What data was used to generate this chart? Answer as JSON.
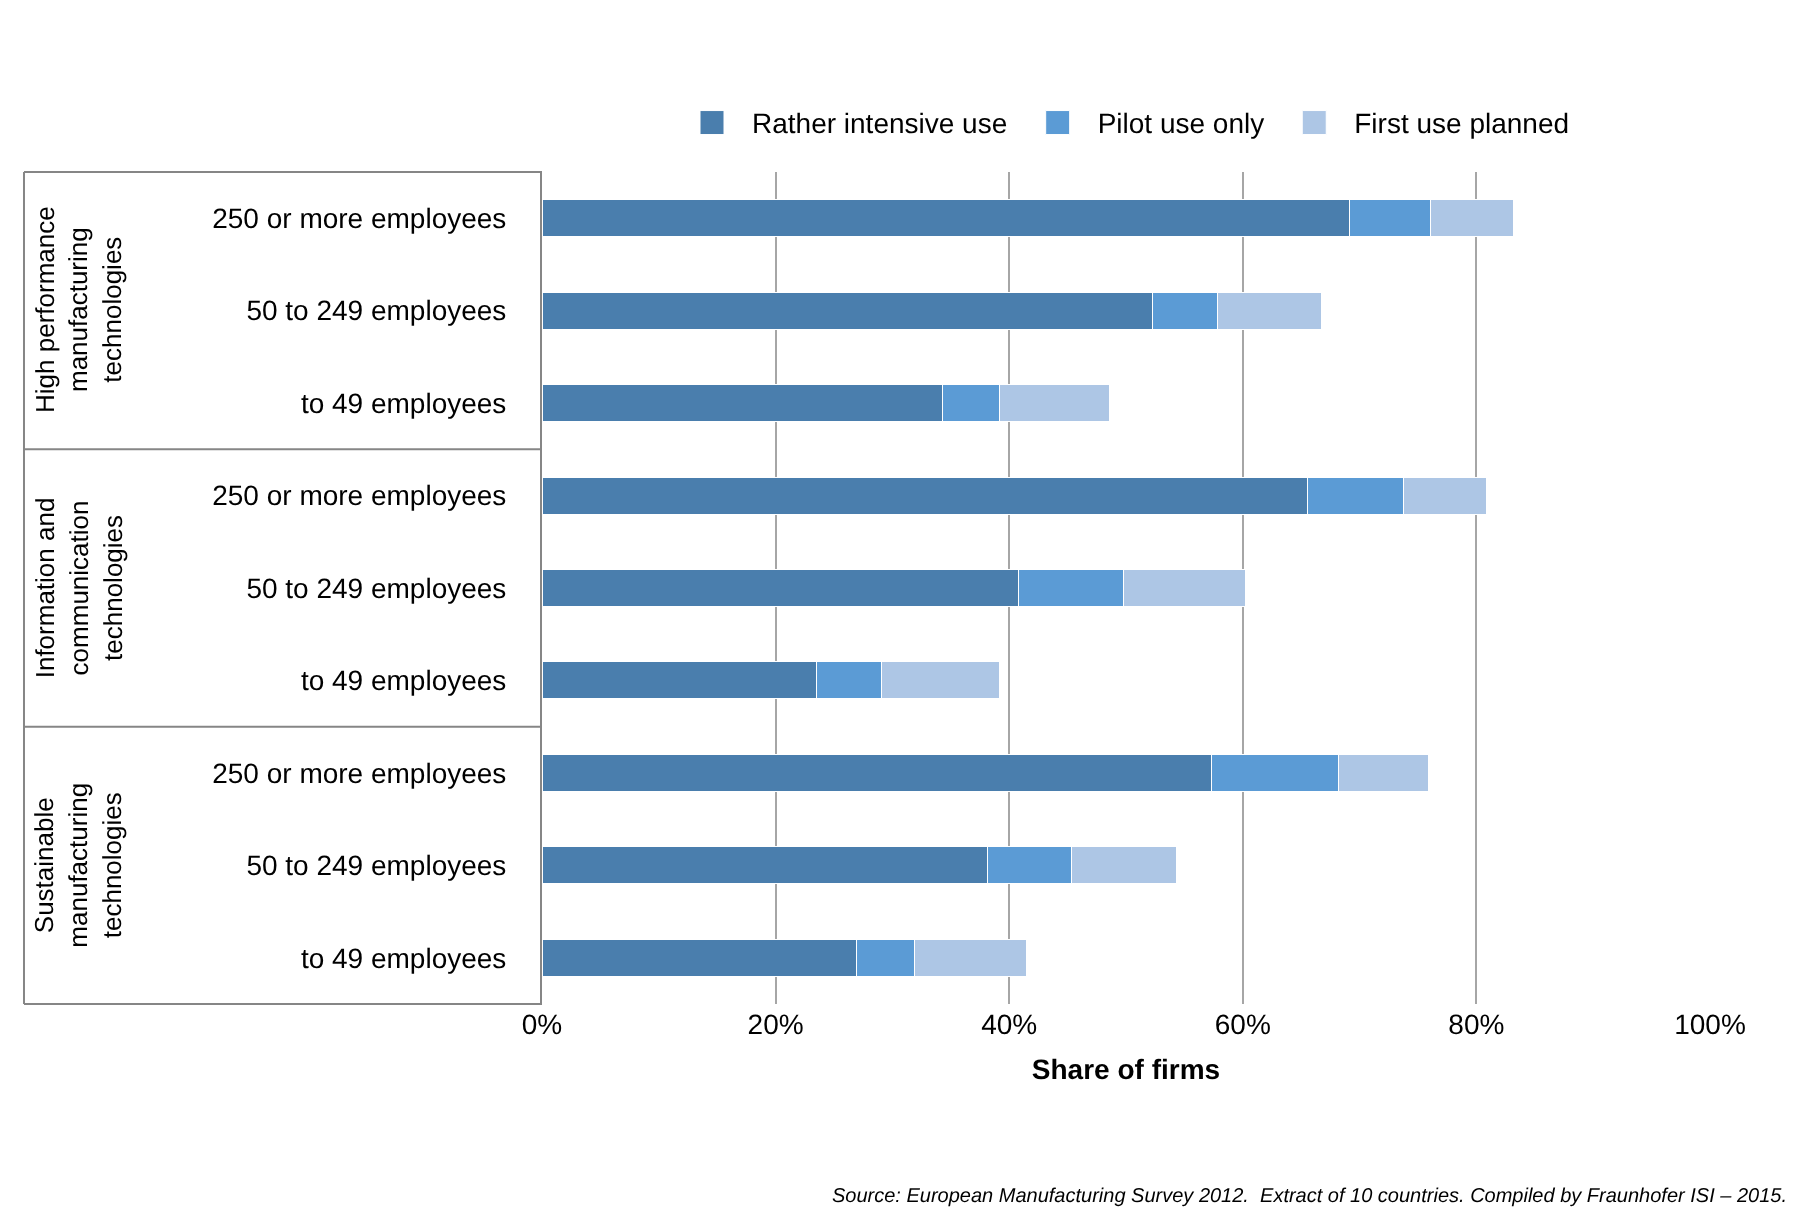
{
  "chart_data": {
    "type": "bar",
    "orientation": "horizontal",
    "stacked": true,
    "categories": [
      "250 or more employees",
      "50 to 249 employees",
      "to 49 employees",
      "250 or more employees",
      "50 to 249 employees",
      "to 49 employees",
      "250 or more employees",
      "50 to 249 employees",
      "to 49 employees"
    ],
    "series": [
      {
        "name": "Rather intensive use",
        "color": "#4a7ead",
        "values": [
          69.1,
          52.3,
          34.3,
          65.5,
          40.8,
          23.5,
          57.3,
          38.1,
          26.9
        ]
      },
      {
        "name": "Pilot use only",
        "color": "#5b9bd5",
        "values": [
          7.0,
          5.5,
          4.9,
          8.3,
          9.0,
          5.6,
          10.9,
          7.2,
          5.0
        ]
      },
      {
        "name": "First use planned",
        "color": "#adc6e5",
        "values": [
          7.1,
          8.9,
          9.4,
          7.1,
          10.4,
          10.1,
          7.7,
          9.0,
          9.6
        ]
      }
    ],
    "xlabel": "Share of firms",
    "xlim": [
      0,
      100
    ],
    "xticks": [
      {
        "value": 0,
        "label": "0%"
      },
      {
        "value": 20,
        "label": "20%"
      },
      {
        "value": 40,
        "label": "40%"
      },
      {
        "value": 60,
        "label": "60%"
      },
      {
        "value": 80,
        "label": "80%"
      },
      {
        "value": 100,
        "label": "100%"
      }
    ],
    "grid": "x",
    "legend": "top",
    "annotations": [
      "High performance\nmanufacturing\ntechnologies",
      "Information and\ncommunication\ntechnologies",
      "Sustainable\nmanufacturing\ntechnologies",
      "Source: European Manufacturing Survey 2012.  Extract of 10 countries. Compiled by Fraunhofer ISI – 2015."
    ]
  }
}
